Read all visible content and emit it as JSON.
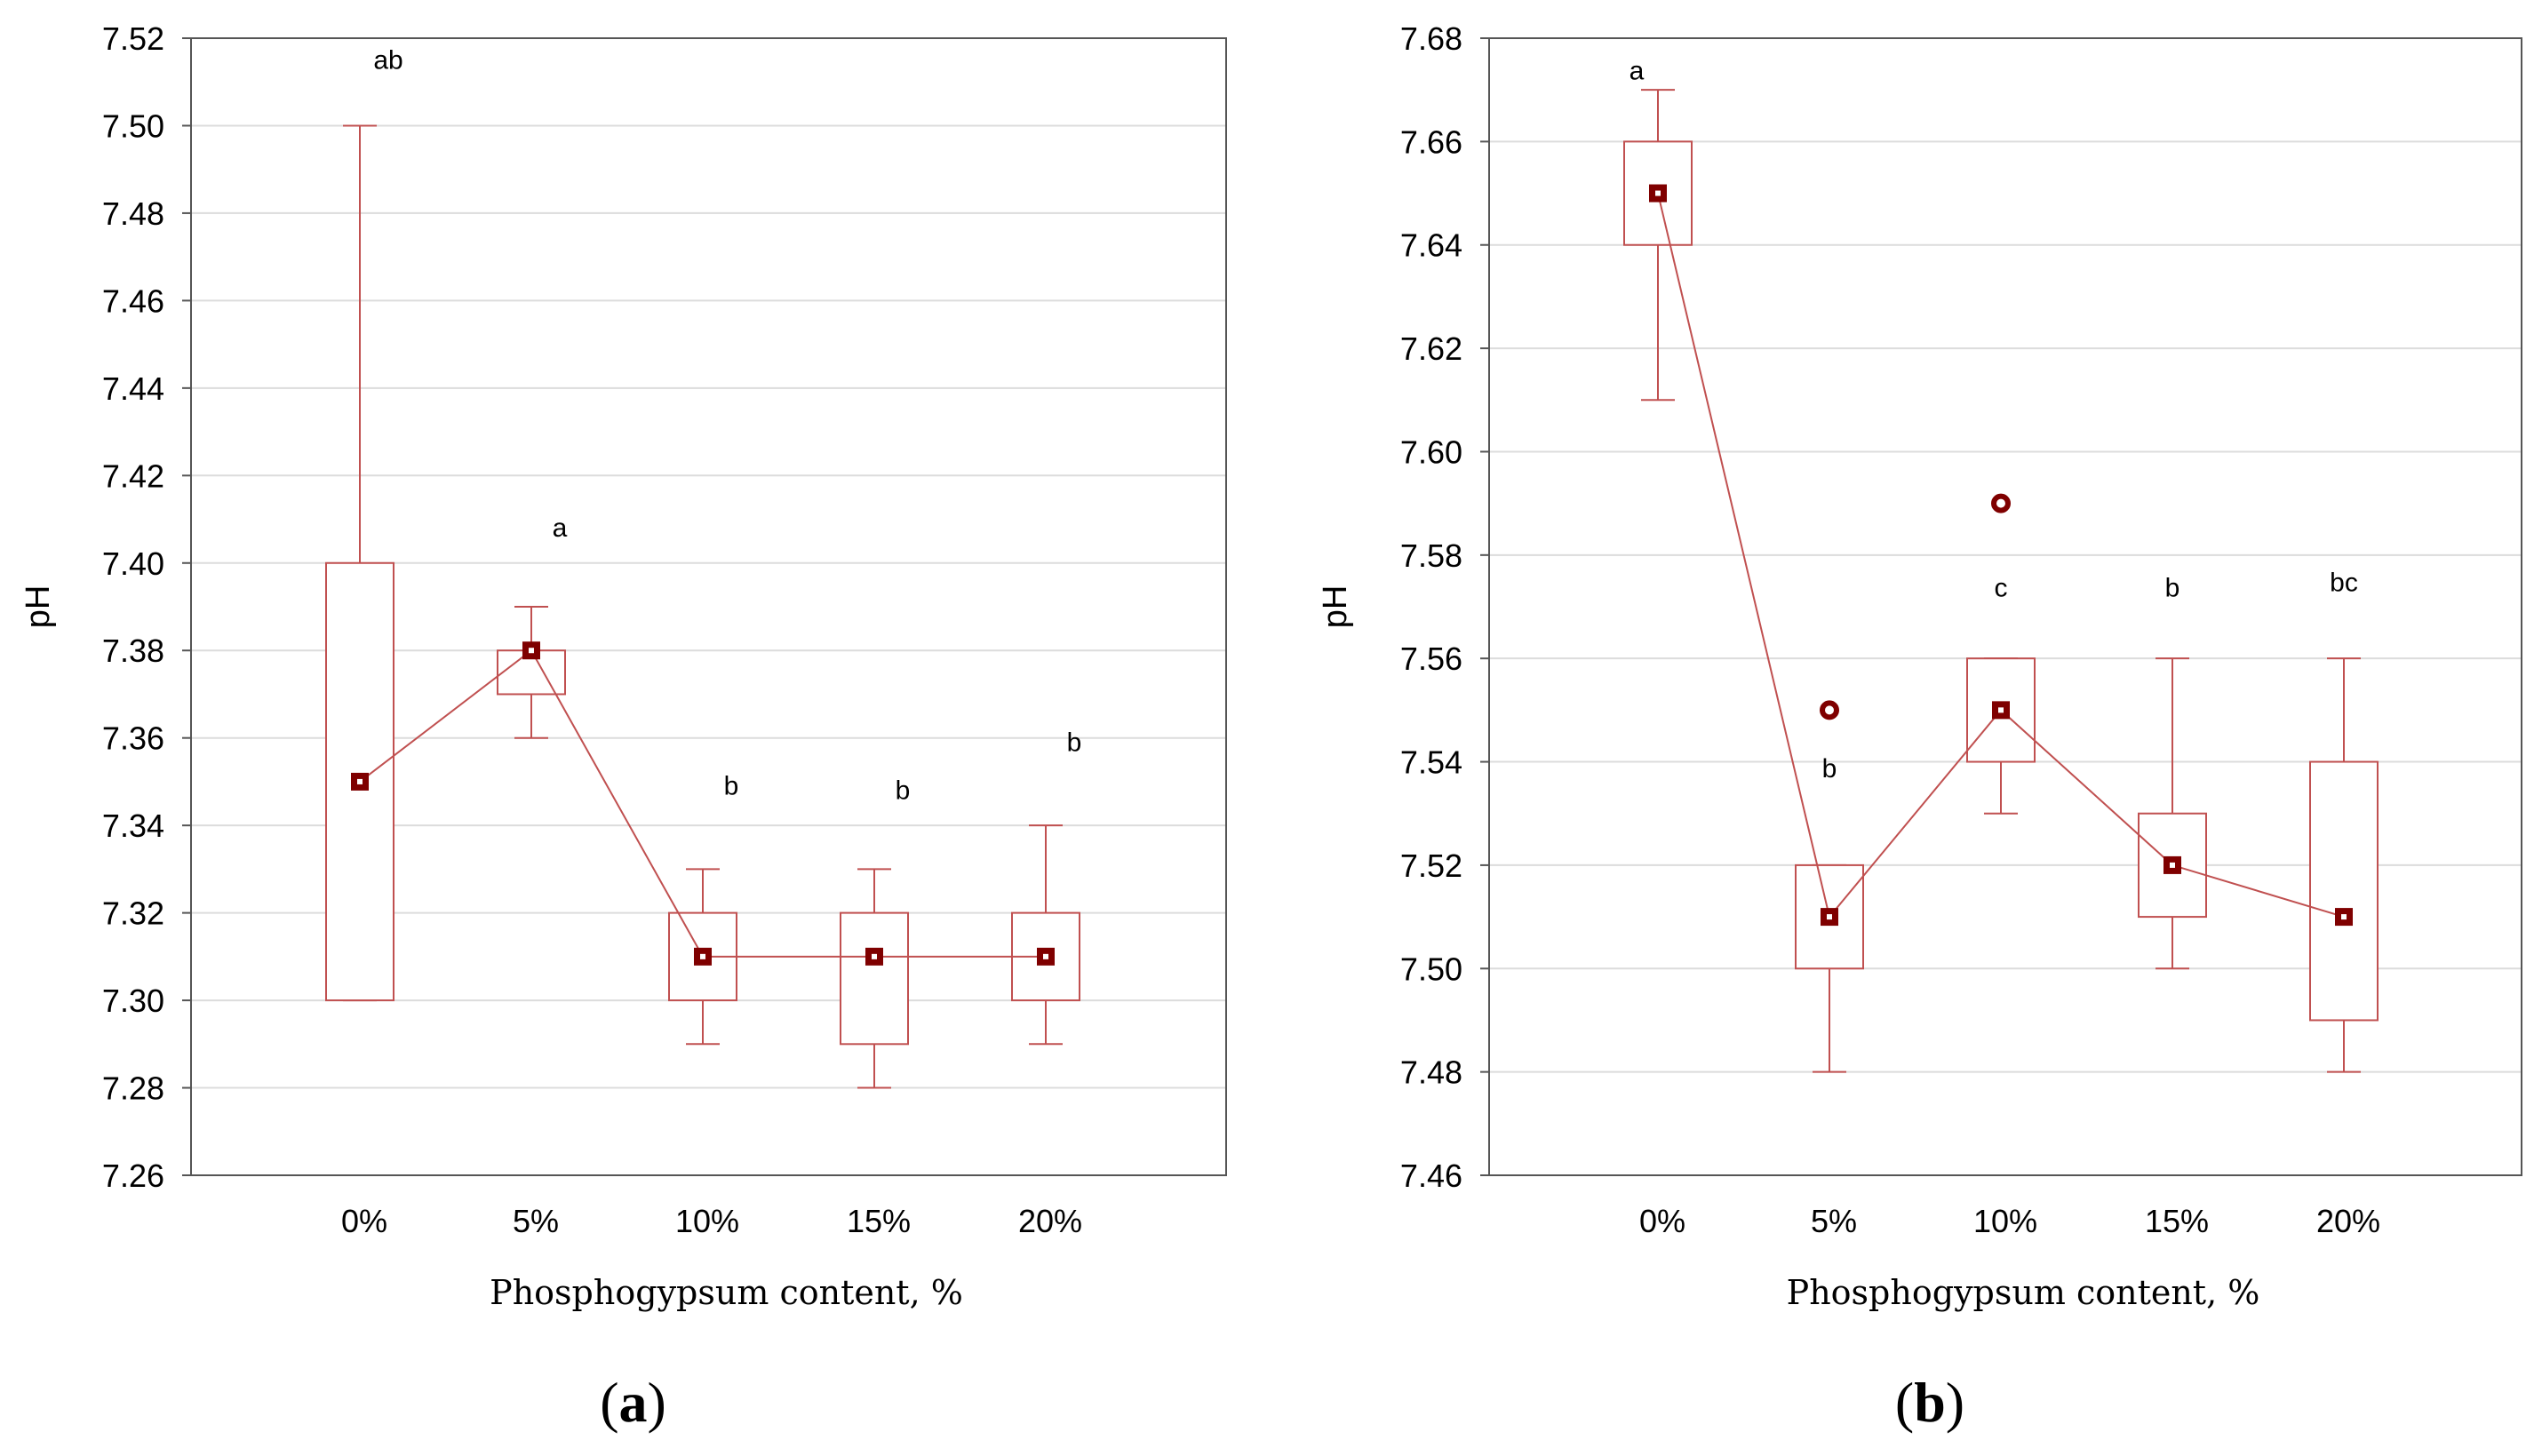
{
  "colors": {
    "series": "#c05050",
    "marker": "#7f0000",
    "grid": "#dcdcdc",
    "frame": "#555555"
  },
  "chart_data": [
    {
      "type": "box",
      "panel_label": "a",
      "panel_open": "(",
      "panel_close": ")",
      "ylabel": "pH",
      "xlabel": "Phosphogypsum content, %",
      "ylim": [
        7.26,
        7.52
      ],
      "yticks": [
        7.26,
        7.28,
        7.3,
        7.32,
        7.34,
        7.36,
        7.38,
        7.4,
        7.42,
        7.44,
        7.46,
        7.48,
        7.5,
        7.52
      ],
      "ytick_labels": [
        "7.26",
        "7.28",
        "7.30",
        "7.32",
        "7.34",
        "7.36",
        "7.38",
        "7.40",
        "7.42",
        "7.44",
        "7.46",
        "7.48",
        "7.50",
        "7.52"
      ],
      "categories": [
        "0%",
        "5%",
        "10%",
        "15%",
        "20%"
      ],
      "median": [
        7.35,
        7.38,
        7.31,
        7.31,
        7.31
      ],
      "q1": [
        7.3,
        7.37,
        7.3,
        7.29,
        7.3
      ],
      "q3": [
        7.4,
        7.38,
        7.32,
        7.32,
        7.32
      ],
      "whisker_low": [
        7.3,
        7.36,
        7.29,
        7.28,
        7.29
      ],
      "whisker_high": [
        7.5,
        7.39,
        7.33,
        7.33,
        7.34
      ],
      "outliers": [
        [],
        [],
        [],
        [],
        []
      ],
      "letters": [
        "ab",
        "a",
        "b",
        "b",
        "b"
      ],
      "letter_y": [
        7.513,
        7.406,
        7.347,
        7.346,
        7.357
      ],
      "grid": true
    },
    {
      "type": "box",
      "panel_label": "b",
      "panel_open": "(",
      "panel_close": ")",
      "ylabel": "pH",
      "xlabel": "Phosphogypsum content, %",
      "ylim": [
        7.46,
        7.68
      ],
      "yticks": [
        7.46,
        7.48,
        7.5,
        7.52,
        7.54,
        7.56,
        7.58,
        7.6,
        7.62,
        7.64,
        7.66,
        7.68
      ],
      "ytick_labels": [
        "7.46",
        "7.48",
        "7.50",
        "7.52",
        "7.54",
        "7.56",
        "7.58",
        "7.60",
        "7.62",
        "7.64",
        "7.66",
        "7.68"
      ],
      "categories": [
        "0%",
        "5%",
        "10%",
        "15%",
        "20%"
      ],
      "median": [
        7.65,
        7.51,
        7.55,
        7.52,
        7.51
      ],
      "q1": [
        7.64,
        7.5,
        7.54,
        7.51,
        7.49
      ],
      "q3": [
        7.66,
        7.52,
        7.56,
        7.53,
        7.54
      ],
      "whisker_low": [
        7.61,
        7.48,
        7.53,
        7.5,
        7.48
      ],
      "whisker_high": [
        7.67,
        7.52,
        7.56,
        7.56,
        7.56
      ],
      "outliers": [
        [],
        [
          7.55
        ],
        [
          7.59
        ],
        [],
        []
      ],
      "letters": [
        "a",
        "b",
        "c",
        "b",
        "bc"
      ],
      "letter_y": [
        7.672,
        7.537,
        7.572,
        7.572,
        7.573
      ],
      "grid": true
    }
  ]
}
